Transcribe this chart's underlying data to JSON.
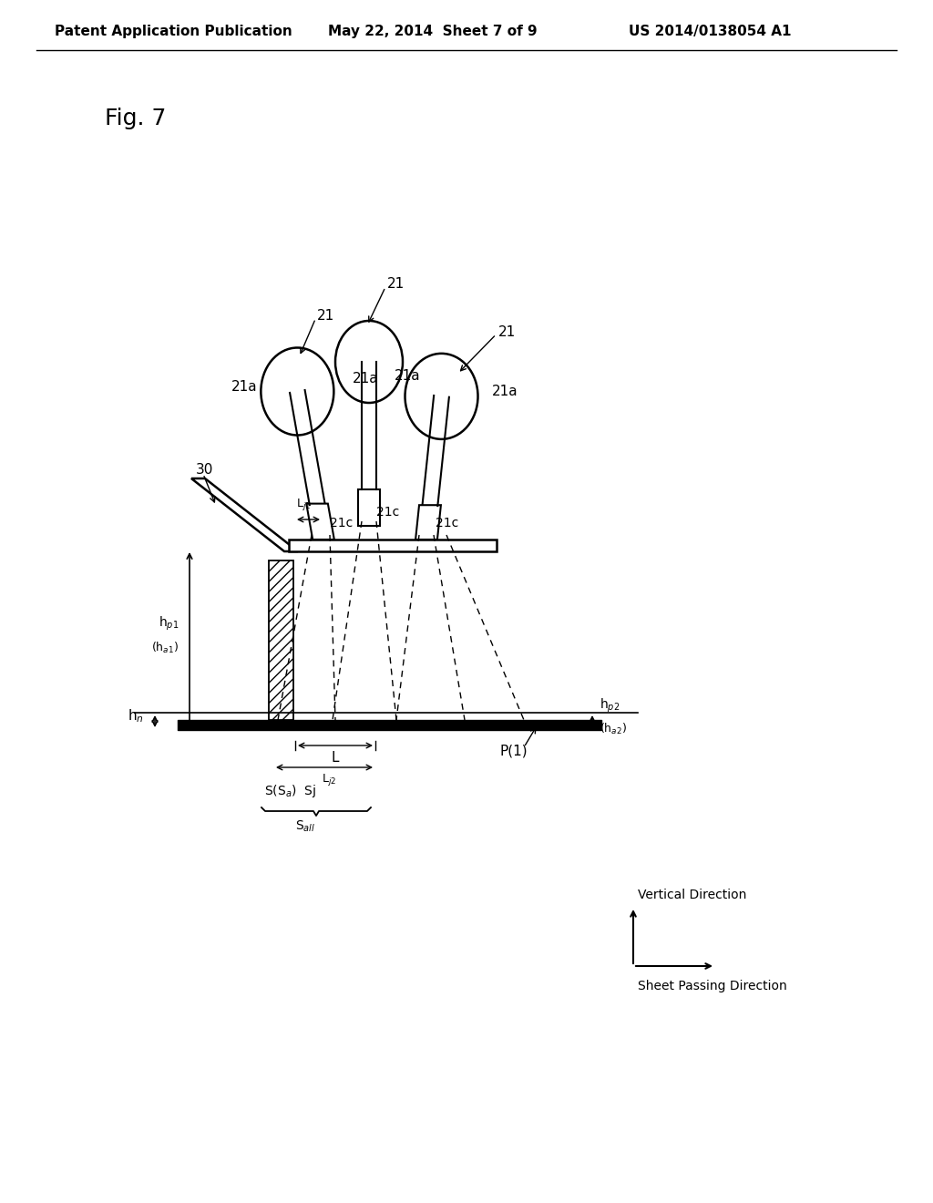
{
  "header_left": "Patent Application Publication",
  "header_center": "May 22, 2014  Sheet 7 of 9",
  "header_right": "US 2014/0138054 A1",
  "fig_label": "Fig. 7",
  "bg_color": "#ffffff",
  "line_color": "#000000"
}
